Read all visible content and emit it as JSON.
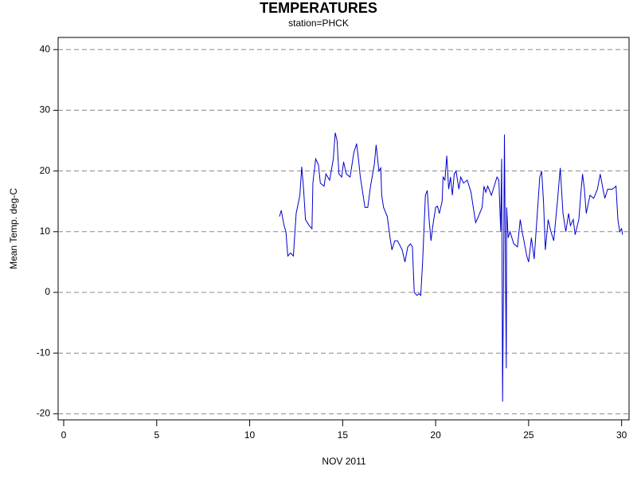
{
  "chart_data": {
    "type": "line",
    "title": "TEMPERATURES",
    "subtitle": "station=PHCK",
    "x_label": "NOV 2011",
    "y_label": "Mean Temp. deg-C",
    "xlim": [
      -0.3,
      30.4
    ],
    "xticks": [
      0,
      5,
      10,
      15,
      20,
      25,
      30
    ],
    "ylim": [
      -21,
      42
    ],
    "yticks": [
      -20,
      -10,
      0,
      10,
      20,
      30,
      40
    ],
    "grid": true,
    "series": [
      {
        "color": "#0000cc",
        "x": [
          11.6,
          11.7,
          11.85,
          11.95,
          12.05,
          12.2,
          12.35,
          12.5,
          12.7,
          12.8,
          12.9,
          13.0,
          13.2,
          13.35,
          13.4,
          13.55,
          13.7,
          13.8,
          14.0,
          14.1,
          14.3,
          14.5,
          14.6,
          14.7,
          14.8,
          14.95,
          15.05,
          15.2,
          15.4,
          15.6,
          15.75,
          15.85,
          15.95,
          16.1,
          16.2,
          16.35,
          16.5,
          16.7,
          16.8,
          16.95,
          17.05,
          17.1,
          17.2,
          17.4,
          17.55,
          17.65,
          17.8,
          17.95,
          18.2,
          18.35,
          18.5,
          18.65,
          18.75,
          18.85,
          19.0,
          19.1,
          19.2,
          19.3,
          19.45,
          19.55,
          19.65,
          19.75,
          19.85,
          20.0,
          20.1,
          20.2,
          20.35,
          20.4,
          20.5,
          20.6,
          20.7,
          20.8,
          20.9,
          21.0,
          21.1,
          21.25,
          21.35,
          21.5,
          21.7,
          21.9,
          22.05,
          22.15,
          22.3,
          22.5,
          22.6,
          22.7,
          22.8,
          23.0,
          23.2,
          23.3,
          23.4,
          23.5,
          23.55,
          23.6,
          23.65,
          23.7,
          23.75,
          23.8,
          23.82,
          23.9,
          24.0,
          24.2,
          24.4,
          24.55,
          24.65,
          24.75,
          24.9,
          25.0,
          25.15,
          25.3,
          25.4,
          25.6,
          25.7,
          25.8,
          25.9,
          26.05,
          26.2,
          26.35,
          26.55,
          26.7,
          26.85,
          27.0,
          27.15,
          27.25,
          27.4,
          27.5,
          27.7,
          27.8,
          27.9,
          28.0,
          28.1,
          28.3,
          28.5,
          28.7,
          28.85,
          29.0,
          29.1,
          29.25,
          29.5,
          29.7,
          29.8,
          29.9,
          30.0,
          30.05
        ],
        "values": [
          12.5,
          13.5,
          11,
          10,
          6,
          6.5,
          6,
          13,
          16,
          20.7,
          17,
          12,
          11,
          10.5,
          18,
          22,
          21,
          18,
          17.5,
          19.5,
          18.5,
          22,
          26.3,
          25,
          19.5,
          19,
          21.5,
          19.5,
          19,
          23,
          24.5,
          22,
          19,
          16,
          14,
          14,
          17.5,
          21,
          24.3,
          20,
          20.5,
          16,
          14,
          12.5,
          9,
          7,
          8.5,
          8.5,
          7,
          5,
          7.5,
          8,
          7.5,
          0,
          -0.5,
          -0.2,
          -0.5,
          5,
          16,
          16.8,
          12,
          8.5,
          11,
          14,
          14.2,
          13,
          15,
          19,
          18.5,
          22.5,
          17,
          19,
          16,
          19.5,
          20,
          17,
          19,
          18,
          18.5,
          16.5,
          13.5,
          11.5,
          12.5,
          14,
          17.5,
          16.5,
          17.5,
          16,
          18,
          19,
          18.5,
          10,
          22,
          -18,
          2,
          26,
          5,
          -12.5,
          14,
          9,
          10,
          8,
          7.5,
          12,
          10,
          8.5,
          6,
          5,
          9,
          5.5,
          10,
          19,
          20,
          15,
          7,
          12,
          10,
          8.5,
          15,
          20.5,
          13,
          10,
          13,
          11,
          12,
          9.5,
          12,
          16,
          19.5,
          17,
          13,
          16,
          15.5,
          17,
          19.5,
          17,
          15.5,
          17,
          17,
          17.5,
          12,
          10,
          10.5,
          9.5
        ]
      }
    ]
  }
}
